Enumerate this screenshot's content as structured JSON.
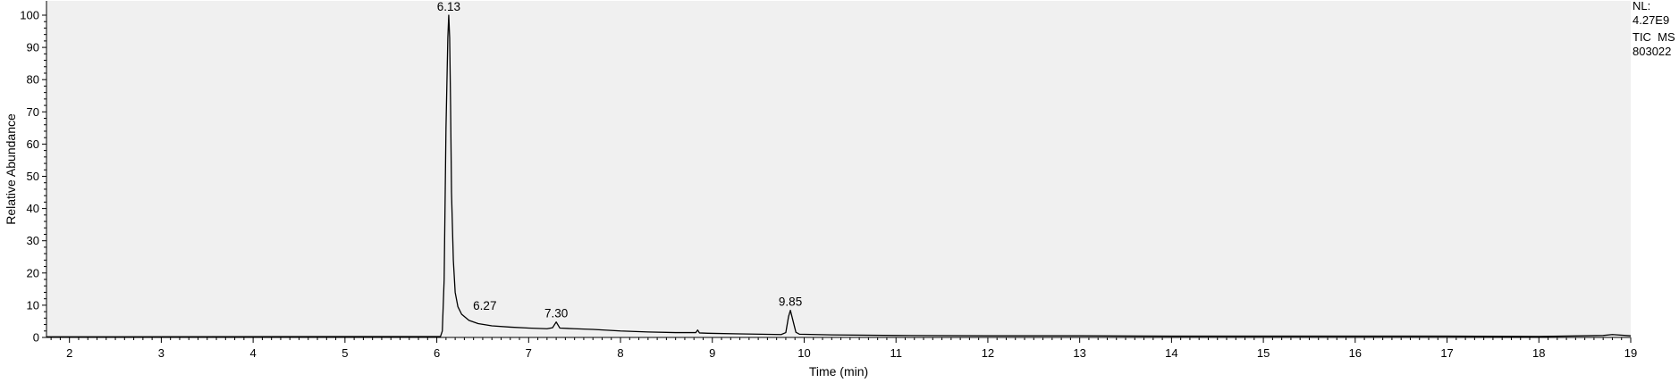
{
  "chart_data": {
    "type": "line",
    "title": "",
    "xlabel": "Time (min)",
    "ylabel": "Relative Abundance",
    "xlim": [
      1.75,
      19.0
    ],
    "ylim": [
      0,
      100
    ],
    "grid": false,
    "x_ticks": [
      2,
      3,
      4,
      5,
      6,
      7,
      8,
      9,
      10,
      11,
      12,
      13,
      14,
      15,
      16,
      17,
      18,
      19
    ],
    "x_tick_labels": [
      "2",
      "3",
      "4",
      "5",
      "6",
      "7",
      "8",
      "9",
      "10",
      "11",
      "12",
      "13",
      "14",
      "15",
      "16",
      "17",
      "18",
      "19"
    ],
    "y_ticks": [
      0,
      10,
      20,
      30,
      40,
      50,
      60,
      70,
      80,
      90,
      100
    ],
    "y_tick_labels": [
      "0",
      "10",
      "20",
      "30",
      "40",
      "50",
      "60",
      "70",
      "80",
      "90",
      "100"
    ],
    "plot_background": "#f0f0f0",
    "line_color": "#000000",
    "series": [
      {
        "points": [
          [
            1.75,
            0.2
          ],
          [
            6.04,
            0.3
          ],
          [
            6.06,
            2
          ],
          [
            6.08,
            18
          ],
          [
            6.1,
            65
          ],
          [
            6.12,
            93
          ],
          [
            6.13,
            100
          ],
          [
            6.14,
            93
          ],
          [
            6.15,
            72
          ],
          [
            6.16,
            45
          ],
          [
            6.18,
            24
          ],
          [
            6.2,
            14
          ],
          [
            6.23,
            9.5
          ],
          [
            6.27,
            7.2
          ],
          [
            6.35,
            5.3
          ],
          [
            6.45,
            4.3
          ],
          [
            6.6,
            3.6
          ],
          [
            6.8,
            3.2
          ],
          [
            7.0,
            2.9
          ],
          [
            7.2,
            2.7
          ],
          [
            7.26,
            3.0
          ],
          [
            7.3,
            4.8
          ],
          [
            7.34,
            2.9
          ],
          [
            7.5,
            2.7
          ],
          [
            7.7,
            2.5
          ],
          [
            8.0,
            2.0
          ],
          [
            8.3,
            1.7
          ],
          [
            8.6,
            1.5
          ],
          [
            8.82,
            1.5
          ],
          [
            8.84,
            2.3
          ],
          [
            8.86,
            1.4
          ],
          [
            8.95,
            1.3
          ],
          [
            9.3,
            1.1
          ],
          [
            9.75,
            0.9
          ],
          [
            9.8,
            1.5
          ],
          [
            9.83,
            6.5
          ],
          [
            9.85,
            8.4
          ],
          [
            9.88,
            5.0
          ],
          [
            9.91,
            1.6
          ],
          [
            9.95,
            1.0
          ],
          [
            10.3,
            0.8
          ],
          [
            11,
            0.6
          ],
          [
            12,
            0.5
          ],
          [
            13,
            0.5
          ],
          [
            14,
            0.4
          ],
          [
            15,
            0.4
          ],
          [
            16,
            0.4
          ],
          [
            17,
            0.4
          ],
          [
            18,
            0.3
          ],
          [
            18.7,
            0.6
          ],
          [
            18.8,
            0.9
          ],
          [
            19.0,
            0.5
          ]
        ]
      }
    ],
    "annotations": [
      {
        "label": "6.13",
        "x": 6.13,
        "y": 100
      },
      {
        "label": "6.27",
        "x": 6.27,
        "y": 7.2
      },
      {
        "label": "7.30",
        "x": 7.3,
        "y": 4.8
      },
      {
        "label": "9.85",
        "x": 9.85,
        "y": 8.4
      }
    ],
    "header_lines": [
      "NL:",
      "4.27E9",
      "TIC  MS",
      "803022"
    ]
  }
}
